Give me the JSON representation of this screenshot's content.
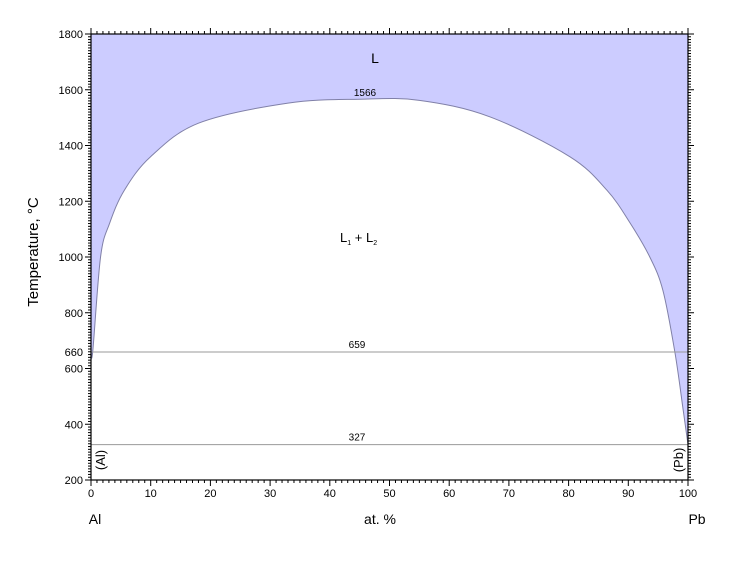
{
  "chart_data": {
    "type": "area",
    "title": "",
    "xlabel": "at. %",
    "ylabel": "Temperature, °C",
    "x_left_element": "Al",
    "x_right_element": "Pb",
    "xlim": [
      0,
      100
    ],
    "ylim": [
      200,
      1800
    ],
    "x_ticks": [
      0,
      10,
      20,
      30,
      40,
      50,
      60,
      70,
      80,
      90,
      100
    ],
    "y_ticks": [
      200,
      400,
      600,
      800,
      1000,
      1200,
      1400,
      1600,
      1800
    ],
    "y_extra_tick": 660,
    "grid": false,
    "fill_color": "#ccccff",
    "liquidus_boundary": {
      "x": [
        0,
        0.3,
        1.6,
        3.1,
        5.6,
        10,
        18,
        33,
        45,
        55,
        66.8,
        80.2,
        86.4,
        90.3,
        93.6,
        95.8,
        97.8,
        99.2,
        100
      ],
      "y": [
        660,
        663,
        1000,
        1120,
        1240,
        1360,
        1480,
        1552,
        1566,
        1562,
        1503,
        1360,
        1240,
        1122,
        1000,
        880,
        659,
        450,
        327
      ]
    },
    "horizontal_lines": [
      {
        "temperature": 659,
        "label": "659"
      },
      {
        "temperature": 327,
        "label": "327"
      }
    ],
    "annotations": {
      "liquid": "L",
      "max": "1566",
      "two_liquids_main": "L",
      "two_liquids_sub1": "1",
      "two_liquids_plus": " + L",
      "two_liquids_sub2": "2",
      "al_phase": "(Al)",
      "pb_phase": "(Pb)"
    }
  }
}
